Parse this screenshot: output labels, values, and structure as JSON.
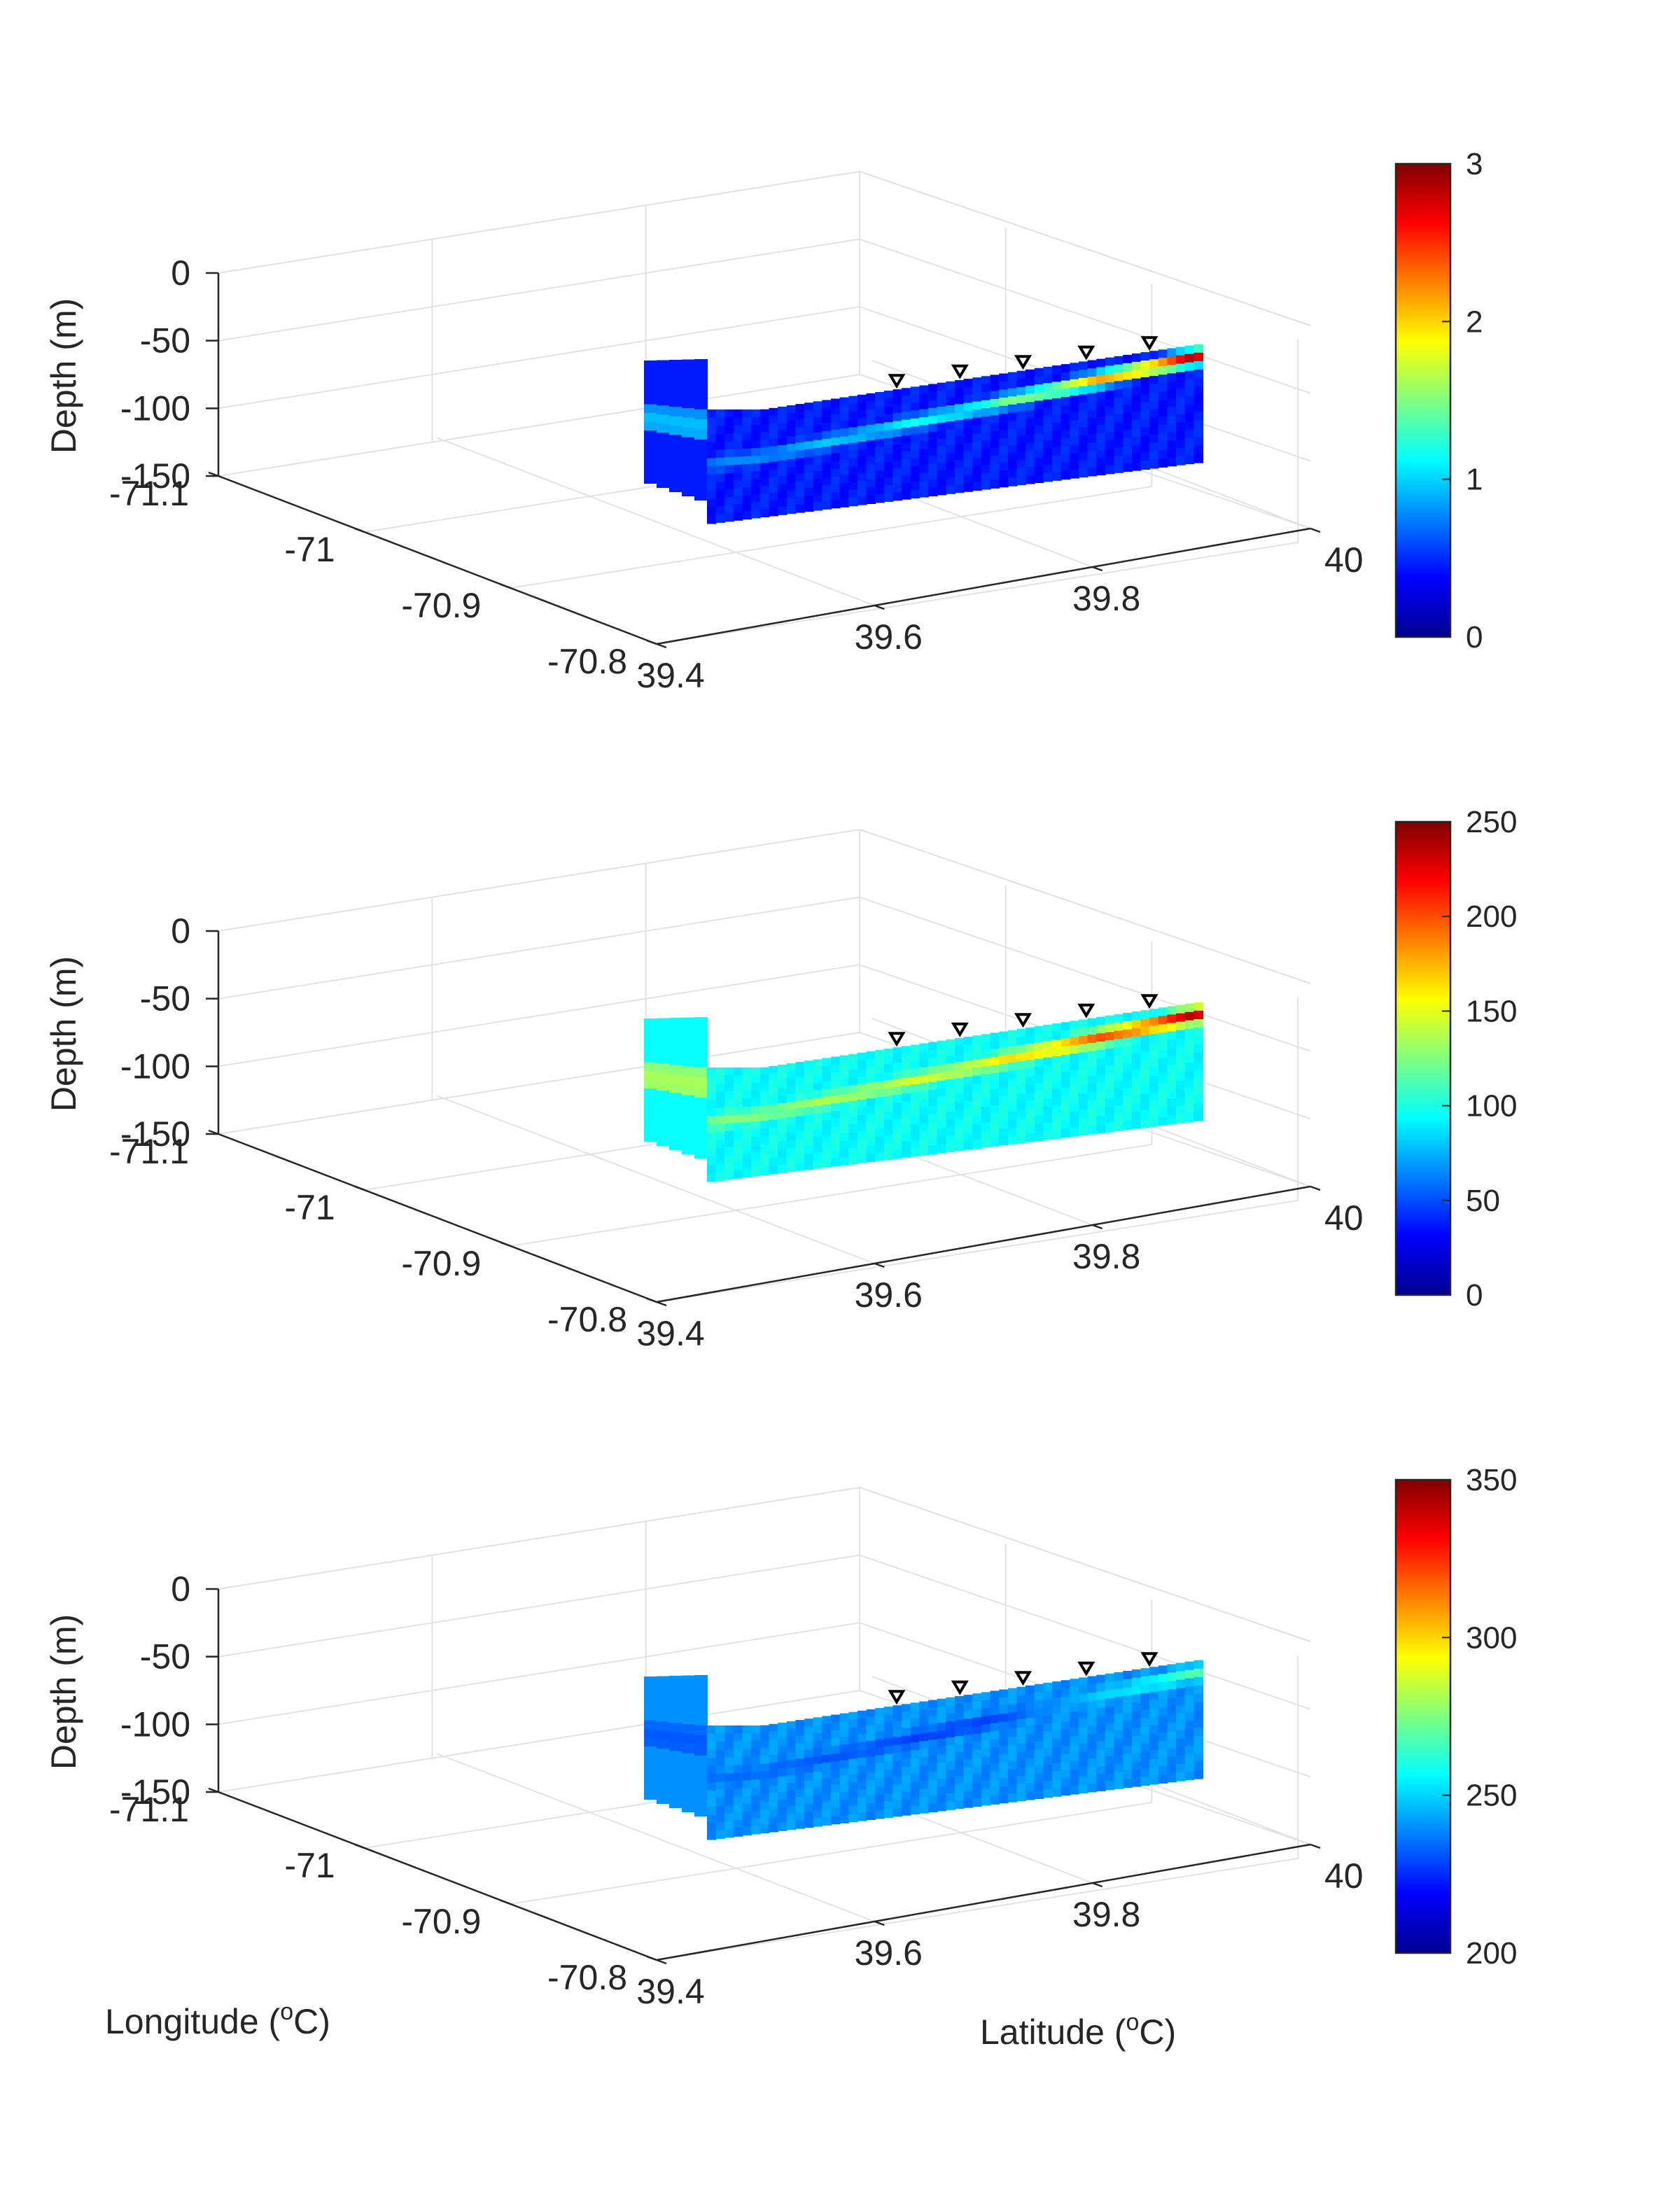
{
  "figure": {
    "xlabel_prefix": "Longitude (",
    "ylabel_prefix": "Latitude (",
    "label_superscript": "o",
    "label_suffix": "C)",
    "zlabel": "Depth (m)"
  },
  "colormap": "jet",
  "colormap_stops": [
    "#00008f",
    "#0000ff",
    "#0080ff",
    "#00ffff",
    "#80ff80",
    "#ffff00",
    "#ff8000",
    "#ff0000",
    "#800000"
  ],
  "marker_color": "#000000",
  "chart_data": [
    {
      "type": "heatmap",
      "plot": "3d-section",
      "x_ticks": [
        "-71.1",
        "-71",
        "-70.9",
        "-70.8"
      ],
      "y_ticks": [
        "39.4",
        "39.6",
        "39.8",
        "40"
      ],
      "z_ticks": [
        "0",
        "-50",
        "-100",
        "-150"
      ],
      "zlim": [
        -150,
        0
      ],
      "colorbar": {
        "ticks": [
          "0",
          "1",
          "2",
          "3"
        ],
        "clim": [
          0,
          3
        ]
      },
      "background": 0.45,
      "band_start": 0.75,
      "band_peak": 1.3,
      "max_level": 2.9,
      "station_latitudes": [
        39.64,
        39.7,
        39.76,
        39.82,
        39.88
      ]
    },
    {
      "type": "heatmap",
      "plot": "3d-section",
      "x_ticks": [
        "-71.1",
        "-71",
        "-70.9",
        "-70.8"
      ],
      "y_ticks": [
        "39.4",
        "39.6",
        "39.8",
        "40"
      ],
      "z_ticks": [
        "0",
        "-50",
        "-100",
        "-150"
      ],
      "zlim": [
        -150,
        0
      ],
      "colorbar": {
        "ticks": [
          "0",
          "50",
          "100",
          "150",
          "200",
          "250"
        ],
        "clim": [
          0,
          250
        ]
      },
      "background": 95,
      "band_start": 125,
      "band_peak": 155,
      "max_level": 240,
      "station_latitudes": [
        39.64,
        39.7,
        39.76,
        39.82,
        39.88
      ]
    },
    {
      "type": "heatmap",
      "plot": "3d-section",
      "x_ticks": [
        "-71.1",
        "-71",
        "-70.9",
        "-70.8"
      ],
      "y_ticks": [
        "39.4",
        "39.6",
        "39.8",
        "40"
      ],
      "z_ticks": [
        "0",
        "-50",
        "-100",
        "-150"
      ],
      "zlim": [
        -150,
        0
      ],
      "colorbar": {
        "ticks": [
          "200",
          "250",
          "300",
          "350"
        ],
        "clim": [
          200,
          350
        ]
      },
      "background": 240,
      "band_start": 235,
      "band_peak": 225,
      "max_level": 270,
      "station_latitudes": [
        39.64,
        39.7,
        39.76,
        39.82,
        39.88
      ]
    }
  ]
}
